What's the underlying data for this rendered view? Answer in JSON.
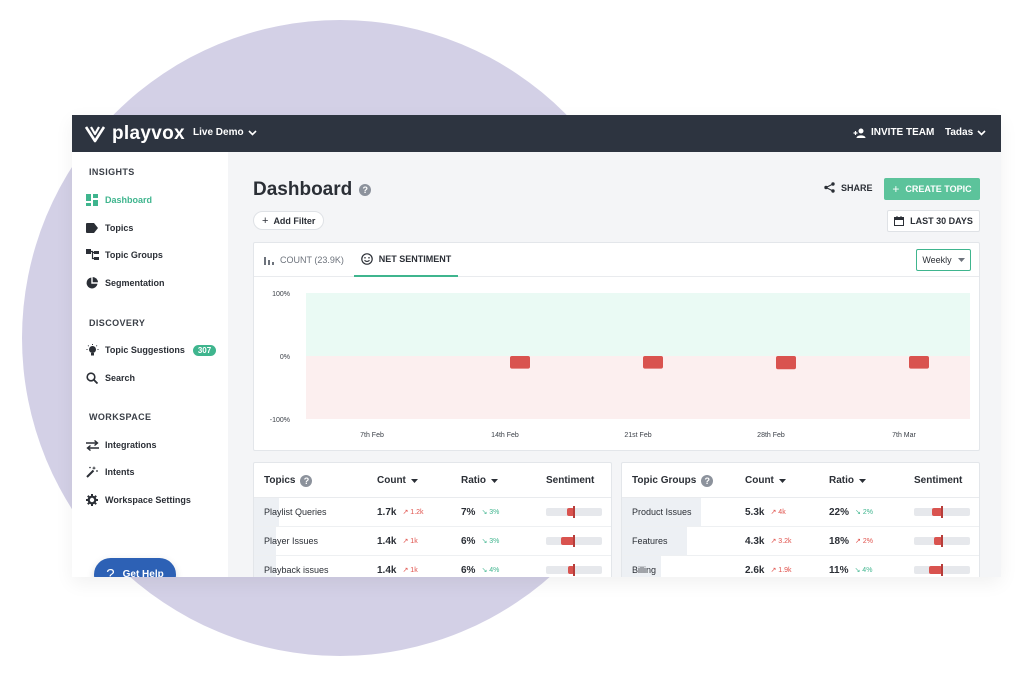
{
  "topbar": {
    "brand": "playvox",
    "workspace": "Live Demo",
    "invite_label": "INVITE TEAM",
    "user_name": "Tadas"
  },
  "sidebar": {
    "sections": [
      {
        "title": "INSIGHTS",
        "items": [
          {
            "label": "Dashboard",
            "icon": "dashboard-icon",
            "active": true
          },
          {
            "label": "Topics",
            "icon": "tag-icon"
          },
          {
            "label": "Topic Groups",
            "icon": "topic-groups-icon"
          },
          {
            "label": "Segmentation",
            "icon": "pie-chart-icon"
          }
        ]
      },
      {
        "title": "DISCOVERY",
        "items": [
          {
            "label": "Topic Suggestions",
            "icon": "lightbulb-icon",
            "badge": "307"
          },
          {
            "label": "Search",
            "icon": "search-icon"
          }
        ]
      },
      {
        "title": "WORKSPACE",
        "items": [
          {
            "label": "Integrations",
            "icon": "arrows-icon"
          },
          {
            "label": "Intents",
            "icon": "magic-wand-icon"
          },
          {
            "label": "Workspace Settings",
            "icon": "gear-icon"
          }
        ]
      }
    ],
    "help_label": "Get Help"
  },
  "main": {
    "title": "Dashboard",
    "share_label": "SHARE",
    "create_label": "CREATE TOPIC",
    "add_filter_label": "Add Filter",
    "date_range_label": "LAST 30 DAYS"
  },
  "chart_tabs": {
    "count_label": "COUNT (23.9K)",
    "sentiment_label": "NET SENTIMENT",
    "interval": "Weekly"
  },
  "chart_data": {
    "type": "bar",
    "categories": [
      "7th Feb",
      "14th Feb",
      "21st Feb",
      "28th Feb",
      "7th Mar"
    ],
    "values": [
      null,
      -20,
      -20,
      -21,
      -20
    ],
    "ylim": [
      -100,
      100
    ],
    "y_ticks": [
      "100%",
      "0%",
      "-100%"
    ],
    "positive_zone_color": "#eafaf4",
    "negative_zone_color": "#fcefef",
    "bar_color": "#d9534f"
  },
  "topics_table": {
    "title": "Topics",
    "columns": {
      "count": "Count",
      "ratio": "Ratio",
      "sentiment": "Sentiment"
    },
    "rows": [
      {
        "name": "Playlist Queries",
        "count": "1.7k",
        "count_delta": "1.2k",
        "ratio": "7%",
        "ratio_delta": "3%",
        "share": 0.07,
        "sentiment": -0.25
      },
      {
        "name": "Player Issues",
        "count": "1.4k",
        "count_delta": "1k",
        "ratio": "6%",
        "ratio_delta": "3%",
        "share": 0.06,
        "sentiment": -0.45
      },
      {
        "name": "Playback issues",
        "count": "1.4k",
        "count_delta": "1k",
        "ratio": "6%",
        "ratio_delta": "4%",
        "share": 0.06,
        "sentiment": -0.22
      }
    ]
  },
  "groups_table": {
    "title": "Topic Groups",
    "columns": {
      "count": "Count",
      "ratio": "Ratio",
      "sentiment": "Sentiment"
    },
    "rows": [
      {
        "name": "Product Issues",
        "count": "5.3k",
        "count_delta": "4k",
        "ratio": "22%",
        "ratio_delta": "2%",
        "share": 0.22,
        "sentiment": -0.35
      },
      {
        "name": "Features",
        "count": "4.3k",
        "count_delta": "3.2k",
        "ratio": "18%",
        "ratio_delta": "2%",
        "share": 0.18,
        "sentiment": -0.28
      },
      {
        "name": "Billing",
        "count": "2.6k",
        "count_delta": "1.9k",
        "ratio": "11%",
        "ratio_delta": "4%",
        "share": 0.11,
        "sentiment": -0.45
      }
    ]
  },
  "ratio_delta_direction": [
    "down",
    "down",
    "down"
  ],
  "groups_ratio_delta_direction": [
    "down",
    "up",
    "down"
  ]
}
